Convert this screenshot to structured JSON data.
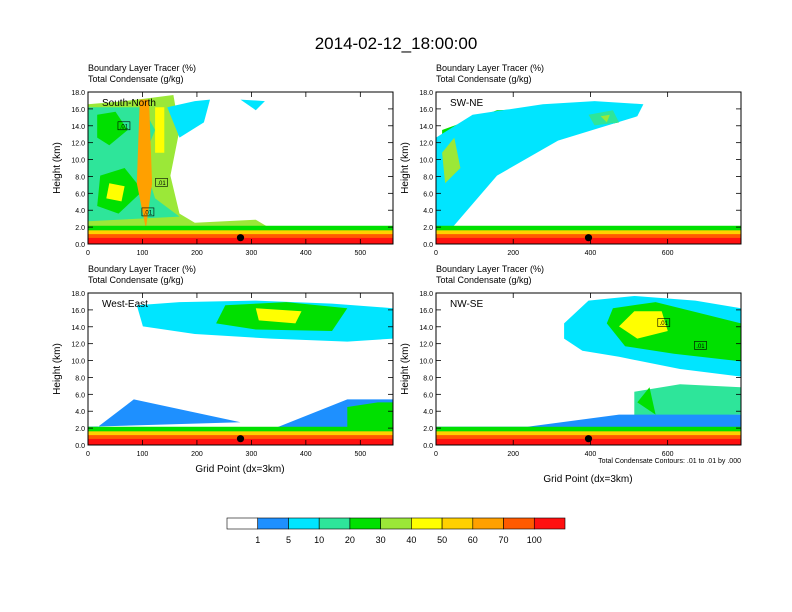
{
  "title": "2014-02-12_18:00:00",
  "panel_header_line1": "Boundary Layer Tracer   (%)",
  "panel_header_line2": "Total Condensate   (g/kg)",
  "ylabel": "Height (km)",
  "xlabel": "Grid Point (dx=3km)",
  "contour_note": "Total Condensate Contours: .01 to .01 by .000",
  "colors": {
    "fill_levels": [
      "#ffffff",
      "#1e90ff",
      "#00e5ff",
      "#2ee59a",
      "#00e000",
      "#9be838",
      "#ffff00",
      "#ffd000",
      "#ffa000",
      "#ff5a00",
      "#ff1010"
    ],
    "grid": "#000000"
  },
  "colorbar": {
    "labels": [
      "1",
      "5",
      "10",
      "20",
      "30",
      "40",
      "50",
      "60",
      "70",
      "100"
    ]
  },
  "chart_data": [
    {
      "type": "heatmap",
      "name": "South-North",
      "xlim": [
        0,
        560
      ],
      "ylim": [
        0,
        18
      ],
      "xticks": [
        "0",
        "100",
        "200",
        "300",
        "400",
        "500"
      ],
      "xtick_values": [
        0,
        100,
        200,
        300,
        400,
        500
      ],
      "yticks": [
        "0.0",
        "2.0",
        "4.0",
        "6.0",
        "8.0",
        "10.0",
        "12.0",
        "14.0",
        "16.0",
        "18.0"
      ],
      "marker_x": 280,
      "contour_labels": [
        {
          "text": ".01",
          "x": 66,
          "y": 14.0
        },
        {
          "text": ".01",
          "x": 135,
          "y": 7.3
        },
        {
          "text": ".01",
          "x": 110,
          "y": 3.8
        }
      ],
      "show_xlabel": false
    },
    {
      "type": "heatmap",
      "name": "SW-NE",
      "xlim": [
        0,
        790
      ],
      "ylim": [
        0,
        18
      ],
      "xticks": [
        "0",
        "200",
        "400",
        "600"
      ],
      "xtick_values": [
        0,
        200,
        400,
        600
      ],
      "yticks": [
        "0.0",
        "2.0",
        "4.0",
        "6.0",
        "8.0",
        "10.0",
        "12.0",
        "14.0",
        "16.0",
        "18.0"
      ],
      "marker_x": 395,
      "contour_labels": [],
      "show_xlabel": false
    },
    {
      "type": "heatmap",
      "name": "West-East",
      "xlim": [
        0,
        560
      ],
      "ylim": [
        0,
        18
      ],
      "xticks": [
        "0",
        "100",
        "200",
        "300",
        "400",
        "500"
      ],
      "xtick_values": [
        0,
        100,
        200,
        300,
        400,
        500
      ],
      "yticks": [
        "0.0",
        "2.0",
        "4.0",
        "6.0",
        "8.0",
        "10.0",
        "12.0",
        "14.0",
        "16.0",
        "18.0"
      ],
      "marker_x": 280,
      "contour_labels": [],
      "show_xlabel": true
    },
    {
      "type": "heatmap",
      "name": "NW-SE",
      "xlim": [
        0,
        790
      ],
      "ylim": [
        0,
        18
      ],
      "xticks": [
        "0",
        "200",
        "400",
        "600"
      ],
      "xtick_values": [
        0,
        200,
        400,
        600
      ],
      "yticks": [
        "0.0",
        "2.0",
        "4.0",
        "6.0",
        "8.0",
        "10.0",
        "12.0",
        "14.0",
        "16.0",
        "18.0"
      ],
      "marker_x": 395,
      "contour_labels": [
        {
          "text": ".01",
          "x": 590,
          "y": 14.5
        },
        {
          "text": ".01",
          "x": 685,
          "y": 11.8
        }
      ],
      "show_xlabel": true
    }
  ]
}
